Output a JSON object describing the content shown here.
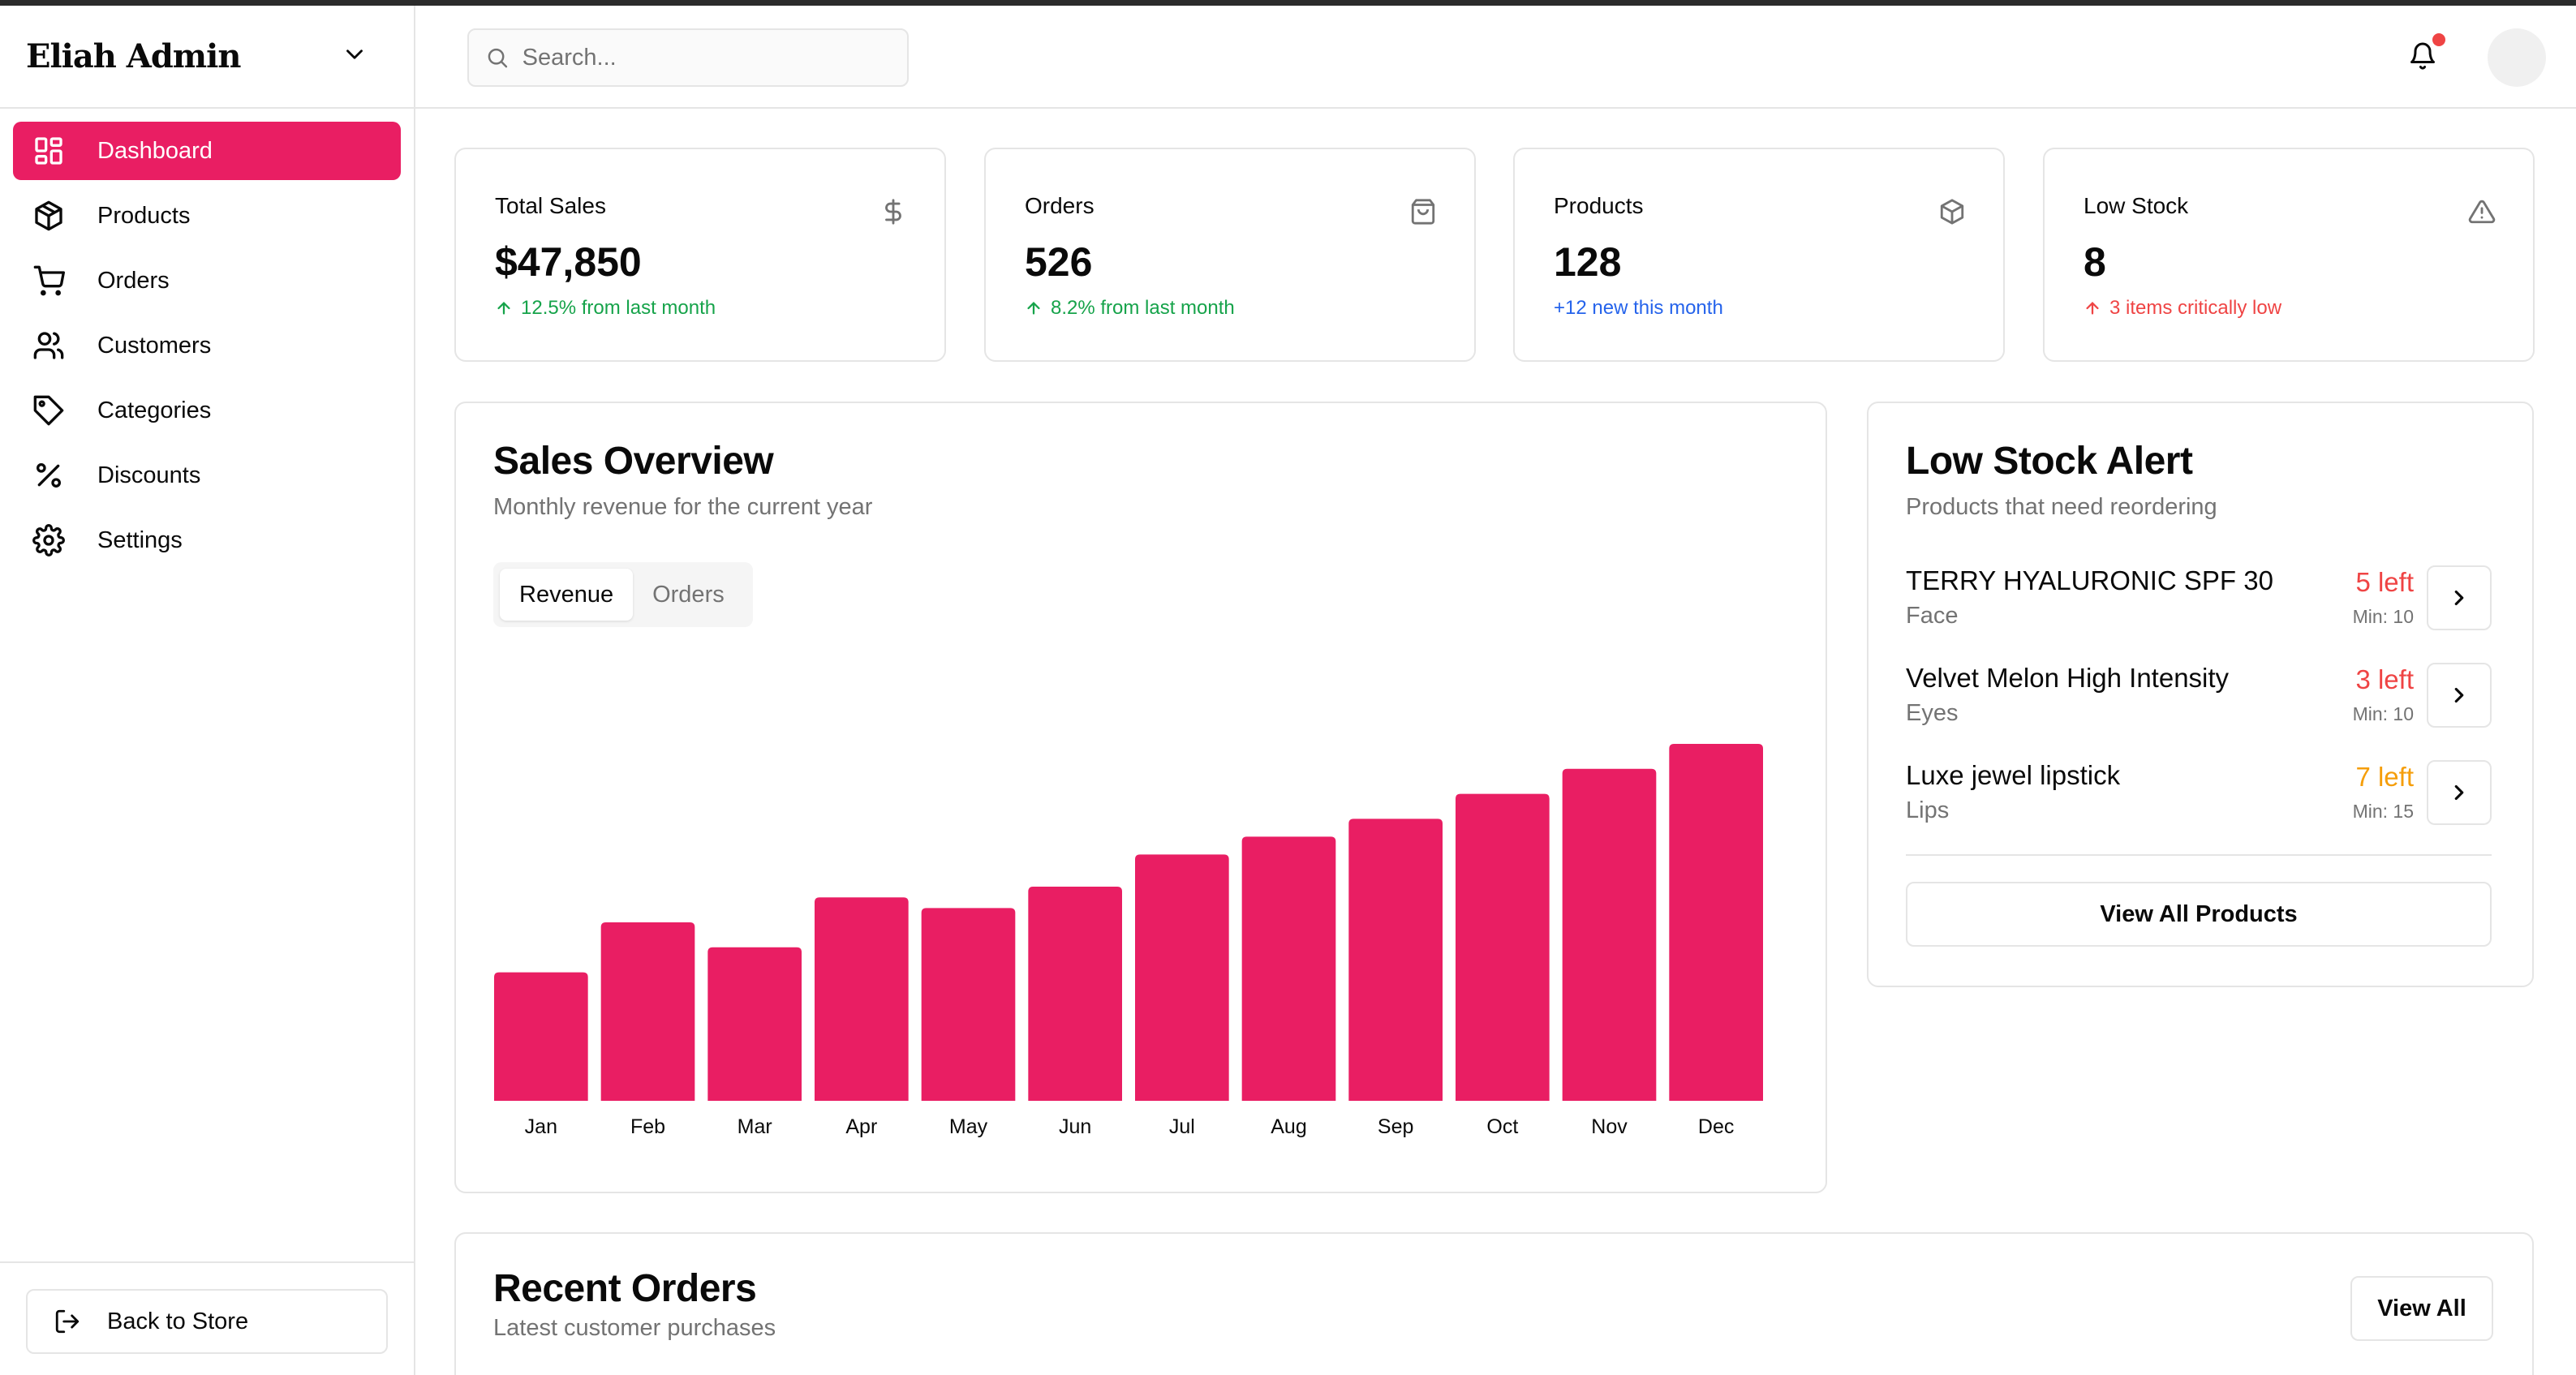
{
  "app": {
    "brand": "Eliah Admin"
  },
  "sidebar": {
    "items": [
      {
        "label": "Dashboard",
        "icon": "dashboard-icon",
        "active": true
      },
      {
        "label": "Products",
        "icon": "package-icon"
      },
      {
        "label": "Orders",
        "icon": "cart-icon"
      },
      {
        "label": "Customers",
        "icon": "users-icon"
      },
      {
        "label": "Categories",
        "icon": "tag-icon"
      },
      {
        "label": "Discounts",
        "icon": "percent-icon"
      },
      {
        "label": "Settings",
        "icon": "gear-icon"
      }
    ],
    "back_label": "Back to Store"
  },
  "header": {
    "search_placeholder": "Search...",
    "has_notification": true
  },
  "stats": [
    {
      "label": "Total Sales",
      "value": "$47,850",
      "note": "12.5% from last month",
      "icon": "dollar-icon"
    },
    {
      "label": "Orders",
      "value": "526",
      "note": "8.2% from last month",
      "icon": "shopping-bag-icon"
    },
    {
      "label": "Products",
      "value": "128",
      "note": "+12 new this month",
      "icon": "package-icon"
    },
    {
      "label": "Low Stock",
      "value": "8",
      "note": "3 items critically low",
      "icon": "warning-icon"
    }
  ],
  "sales": {
    "title": "Sales Overview",
    "subtitle": "Monthly revenue for the current year",
    "tabs": [
      "Revenue",
      "Orders"
    ],
    "active_tab": "Revenue"
  },
  "chart_data": {
    "type": "bar",
    "categories": [
      "Jan",
      "Feb",
      "Mar",
      "Apr",
      "May",
      "Jun",
      "Jul",
      "Aug",
      "Sep",
      "Oct",
      "Nov",
      "Dec"
    ],
    "values": [
      36,
      50,
      43,
      57,
      54,
      60,
      69,
      74,
      79,
      86,
      93,
      100
    ],
    "ylim": [
      0,
      100
    ],
    "color": "#e91e63",
    "grid": false
  },
  "low_stock": {
    "title": "Low Stock Alert",
    "subtitle": "Products that need reordering",
    "items": [
      {
        "name": "TERRY HYALURONIC SPF 30",
        "category": "Face",
        "left": "5 left",
        "min": "Min: 10",
        "color": "#ef4444"
      },
      {
        "name": "Velvet Melon High Intensity",
        "category": "Eyes",
        "left": "3 left",
        "min": "Min: 10",
        "color": "#ef4444"
      },
      {
        "name": "Luxe jewel lipstick",
        "category": "Lips",
        "left": "7 left",
        "min": "Min: 15",
        "color": "#f59e0b"
      }
    ],
    "view_all_label": "View All Products"
  },
  "recent_orders": {
    "title": "Recent Orders",
    "subtitle": "Latest customer purchases",
    "view_all_label": "View All"
  },
  "colors": {
    "accent": "#e91e63",
    "positive": "#16a34a",
    "info": "#2563eb",
    "danger": "#ef4444",
    "warning": "#f59e0b"
  }
}
